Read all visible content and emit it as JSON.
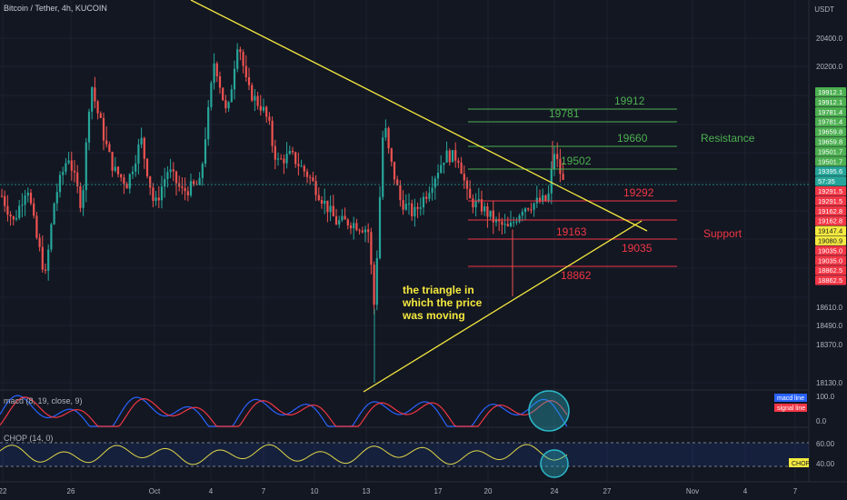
{
  "header": {
    "title": "Bitcoin / Tether, 4h, KUCOIN",
    "currency": "USDT"
  },
  "macd_panel": {
    "label": "macd (8, 19, close, 9)",
    "legend": [
      "macd line",
      "signal line"
    ],
    "ticks": [
      "100.0",
      "0.0"
    ]
  },
  "chop_panel": {
    "label": "CHOP (14, 0)",
    "badge": "CHOP",
    "ticks": [
      "60.00",
      "40.00"
    ]
  },
  "annotations": {
    "triangle_note": [
      "the triangle in",
      "which the price",
      "was moving"
    ],
    "resistance_label": "Resistance",
    "support_label": "Support"
  },
  "colors": {
    "background": "#131722",
    "up": "#26a69a",
    "down": "#ef5350",
    "trendline": "#f5e93f",
    "resistance": "#4caf50",
    "support": "#f23645",
    "macd": "#2962ff",
    "signal": "#f23645",
    "chop": "#e0d64a",
    "circle": "#2bb8c9"
  },
  "chart_data": {
    "type": "candlestick",
    "symbol": "Bitcoin / Tether",
    "interval": "4h",
    "exchange": "KUCOIN",
    "y_ticks": [
      20400,
      20200,
      18610,
      18490,
      18370,
      18130
    ],
    "y_tick_labels": [
      "20400.0",
      "20200.0",
      "18610.0",
      "18490.0",
      "18370.0",
      "18130.0"
    ],
    "x_tick_labels": [
      "22",
      "26",
      "Oct",
      "4",
      "7",
      "10",
      "13",
      "17",
      "20",
      "24",
      "27",
      "Nov",
      "4",
      "7"
    ],
    "resistance_levels": [
      19912,
      19781,
      19660,
      19502
    ],
    "support_levels": [
      19292,
      19163,
      19035,
      18862
    ],
    "price_tags": [
      {
        "label": "19912.1",
        "kind": "res"
      },
      {
        "label": "19912.1",
        "kind": "res"
      },
      {
        "label": "19781.4",
        "kind": "res"
      },
      {
        "label": "19781.4",
        "kind": "res"
      },
      {
        "label": "19659.8",
        "kind": "res"
      },
      {
        "label": "19659.8",
        "kind": "res"
      },
      {
        "label": "19501.7",
        "kind": "res"
      },
      {
        "label": "19501.7",
        "kind": "res"
      },
      {
        "label": "19395.6",
        "kind": "cur"
      },
      {
        "label": "57:35",
        "kind": "cur"
      },
      {
        "label": "19291.5",
        "kind": "sup"
      },
      {
        "label": "19291.5",
        "kind": "sup"
      },
      {
        "label": "19162.8",
        "kind": "sup"
      },
      {
        "label": "19162.8",
        "kind": "sup"
      },
      {
        "label": "19147.4",
        "kind": "yel"
      },
      {
        "label": "19080.9",
        "kind": "yel"
      },
      {
        "label": "19035.0",
        "kind": "sup"
      },
      {
        "label": "19035.0",
        "kind": "sup"
      },
      {
        "label": "18862.5",
        "kind": "sup"
      },
      {
        "label": "18862.5",
        "kind": "sup"
      }
    ],
    "current_price": 19395.6,
    "countdown": "57:35"
  }
}
